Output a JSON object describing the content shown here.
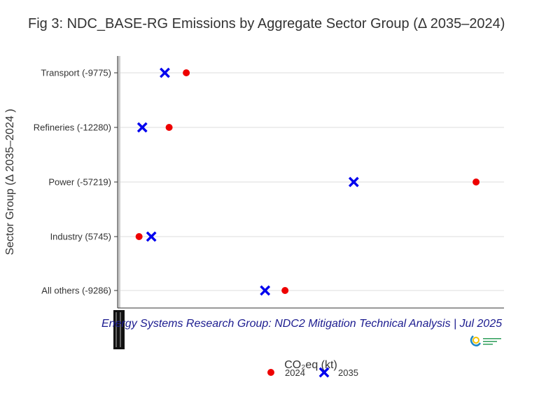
{
  "chart_data": {
    "type": "scatter",
    "title": "Fig 3: NDC_BASE-RG Emissions by Aggregate Sector Group (Δ 2035–2024)",
    "xlabel": "CO₂eq (kt)",
    "ylabel": "Sector Group (Δ 2035–2024 )",
    "categories": [
      "Transport (-9775)",
      "Refineries (-12280)",
      "Power (-57219)",
      "Industry (5745)",
      "All others (-9286)"
    ],
    "xlim": [
      0,
      180000
    ],
    "grid": true,
    "legend_position": "bottom",
    "series": [
      {
        "name": "2024",
        "marker": "circle",
        "color": "#ee0000",
        "values": [
          32000,
          24000,
          167000,
          10000,
          78000
        ]
      },
      {
        "name": "2035",
        "marker": "x",
        "color": "#0000ee",
        "values": [
          22000,
          11500,
          110000,
          15700,
          68700
        ]
      }
    ],
    "caption": "Energy Systems Research Group: NDC2 Mitigation Technical Analysis | Jul 2025"
  }
}
